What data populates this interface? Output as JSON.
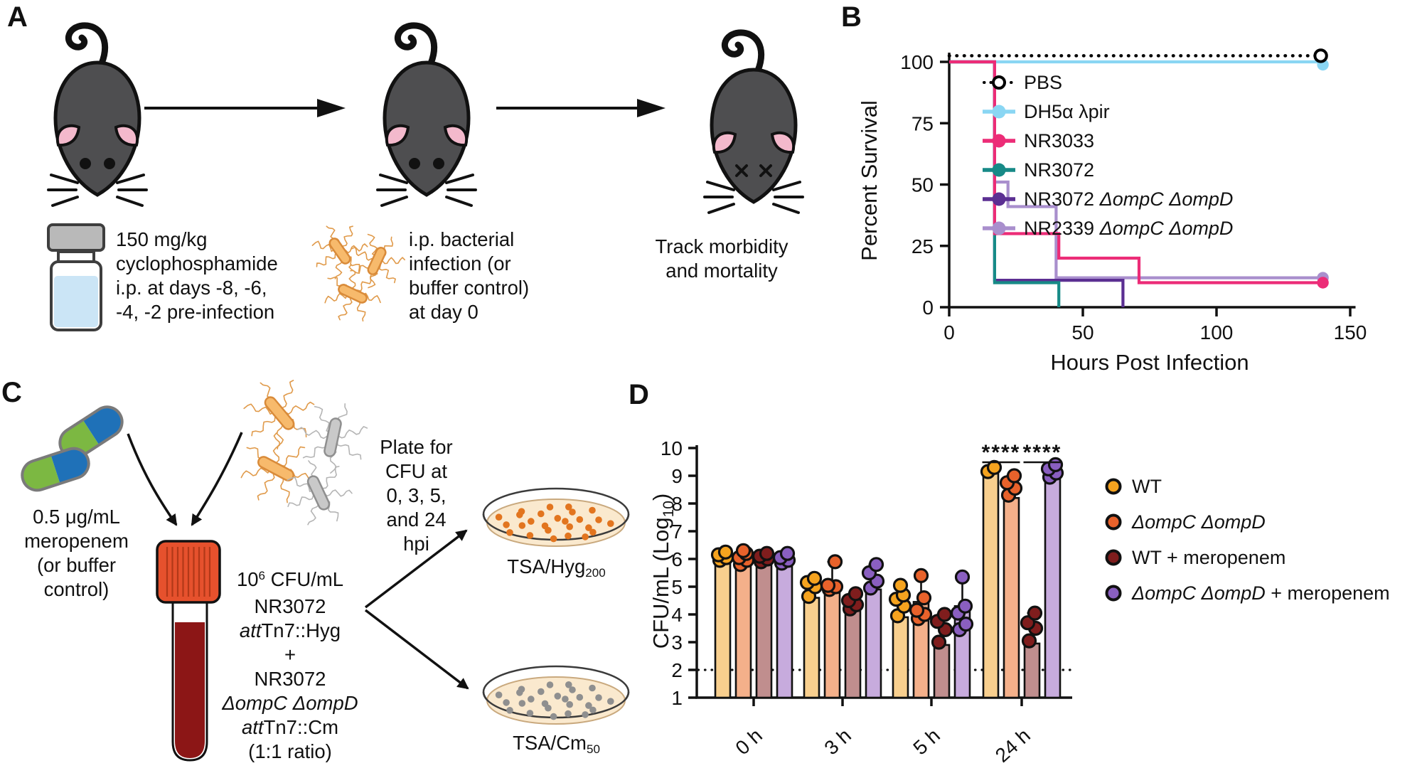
{
  "figure": {
    "panel_labels": {
      "a": "A",
      "b": "B",
      "c": "C",
      "d": "D"
    }
  },
  "panel_a": {
    "cyclophosphamide_text": [
      "150 mg/kg",
      "cyclophosphamide",
      "i.p. at days -8, -6,",
      "-4, -2 pre-infection"
    ],
    "infection_text": [
      "i.p. bacterial",
      "infection (or",
      "buffer control)",
      "at day 0"
    ],
    "track_text": [
      "Track morbidity",
      "and mortality"
    ]
  },
  "panel_c": {
    "meropenem_text": [
      "0.5 μg/mL",
      "meropenem",
      "(or buffer",
      "control)"
    ],
    "plate_for_text": [
      "Plate for",
      "CFU at",
      "0, 3, 5,",
      "and 24",
      "hpi"
    ],
    "inoculum_text": [
      [
        {
          "t": "10"
        },
        {
          "t": "6",
          "sup": true
        },
        {
          "t": " CFU/mL"
        }
      ],
      [
        {
          "t": "NR3072"
        }
      ],
      [
        {
          "t": "att",
          "i": true
        },
        {
          "t": "Tn7::Hyg"
        }
      ],
      [
        {
          "t": "+"
        }
      ],
      [
        {
          "t": "NR3072"
        }
      ],
      [
        {
          "t": "ΔompC ΔompD",
          "i": true
        }
      ],
      [
        {
          "t": "att",
          "i": true
        },
        {
          "t": "Tn7::Cm"
        }
      ],
      [
        {
          "t": "(1:1 ratio)"
        }
      ]
    ],
    "plate_top_label": [
      [
        {
          "t": "TSA/Hyg"
        },
        {
          "t": "200",
          "sub": true
        }
      ]
    ],
    "plate_bottom_label": [
      [
        {
          "t": "TSA/Cm"
        },
        {
          "t": "50",
          "sub": true
        }
      ]
    ]
  },
  "chart_data": [
    {
      "type": "line",
      "subtype": "kaplan-meier-survival",
      "title": "",
      "xlabel": "Hours Post Infection",
      "ylabel": "Percent Survival",
      "xlim": [
        0,
        150
      ],
      "xticks": [
        0,
        50,
        100,
        150
      ],
      "ylim": [
        0,
        100
      ],
      "yticks": [
        0,
        25,
        50,
        75,
        100
      ],
      "grid": false,
      "legend_position": "inside-top-right",
      "series": [
        {
          "name": "PBS",
          "name_rich": [
            {
              "t": "PBS"
            }
          ],
          "color": "#000000",
          "line": "dotted",
          "marker": "open",
          "offset_y": 2.5,
          "z": 6,
          "end_marker": true,
          "steps": [
            [
              0,
              100
            ],
            [
              139,
              100
            ]
          ]
        },
        {
          "name": "DH5α λpir",
          "name_rich": [
            {
              "t": "DH5α λpir"
            }
          ],
          "color": "#8AD6F3",
          "line": "solid",
          "marker": "filled",
          "z": 1,
          "end_marker": true,
          "steps": [
            [
              0,
              100
            ],
            [
              139,
              100
            ]
          ]
        },
        {
          "name": "NR3033",
          "name_rich": [
            {
              "t": "NR3033"
            }
          ],
          "color": "#EC2C77",
          "line": "solid",
          "marker": "filled",
          "z": 5,
          "end_marker": true,
          "steps": [
            [
              0,
              100
            ],
            [
              17,
              100
            ],
            [
              17,
              30
            ],
            [
              41,
              30
            ],
            [
              41,
              20
            ],
            [
              71,
              20
            ],
            [
              71,
              10
            ],
            [
              139,
              10
            ]
          ]
        },
        {
          "name": "NR3072",
          "name_rich": [
            {
              "t": "NR3072"
            }
          ],
          "color": "#178A87",
          "line": "solid",
          "marker": "filled",
          "z": 4,
          "end_marker": false,
          "steps": [
            [
              0,
              100
            ],
            [
              17,
              100
            ],
            [
              17,
              10
            ],
            [
              41,
              10
            ],
            [
              41,
              0
            ]
          ]
        },
        {
          "name": "NR3072 ΔompC ΔompD",
          "name_rich": [
            {
              "t": "NR3072 "
            },
            {
              "t": "ΔompC ΔompD",
              "i": true
            }
          ],
          "color": "#5B2F92",
          "line": "solid",
          "marker": "filled",
          "z": 3,
          "end_marker": false,
          "steps": [
            [
              0,
              100
            ],
            [
              17,
              100
            ],
            [
              17,
              11
            ],
            [
              65,
              11
            ],
            [
              65,
              0
            ]
          ]
        },
        {
          "name": "NR2339 ΔompC ΔompD",
          "name_rich": [
            {
              "t": "NR2339 "
            },
            {
              "t": "ΔompC ΔompD",
              "i": true
            }
          ],
          "color": "#A98FCD",
          "line": "solid",
          "marker": "filled",
          "z": 2,
          "end_marker": true,
          "steps": [
            [
              0,
              100
            ],
            [
              17,
              100
            ],
            [
              17,
              51
            ],
            [
              22,
              51
            ],
            [
              22,
              41
            ],
            [
              40,
              41
            ],
            [
              40,
              12
            ],
            [
              139,
              12
            ]
          ]
        }
      ]
    },
    {
      "type": "bar",
      "subtype": "grouped-bar-with-dots",
      "title": "",
      "xlabel": "",
      "ylabel": "CFU/mL (Log10)",
      "ylabel_rich": [
        {
          "t": "CFU/mL (Log"
        },
        {
          "t": "10",
          "sub": true
        },
        {
          "t": ")"
        }
      ],
      "categories": [
        "0 h",
        "3 h",
        "5 h",
        "24 h"
      ],
      "ylim": [
        1,
        10
      ],
      "yticks": [
        1,
        2,
        3,
        4,
        5,
        6,
        7,
        8,
        9,
        10
      ],
      "detection_limit": 2,
      "series": [
        {
          "name": "WT",
          "name_rich": [
            {
              "t": "WT"
            }
          ],
          "bar_color": "#F8CF8E",
          "dot_color": "#F5A31F",
          "values": [
            6.0,
            4.6,
            3.9,
            9.2
          ],
          "dots": [
            [
              5.95,
              6.05,
              6.15,
              6.25
            ],
            [
              4.65,
              5.0,
              5.15,
              5.3
            ],
            [
              3.95,
              4.3,
              4.55,
              4.7,
              5.05
            ],
            [
              9.15,
              9.3
            ]
          ]
        },
        {
          "name": "ΔompC ΔompD",
          "name_rich": [
            {
              "t": "ΔompC ΔompD",
              "i": true
            }
          ],
          "bar_color": "#F4B08A",
          "dot_color": "#E8622B",
          "values": [
            5.95,
            4.85,
            4.45,
            8.2
          ],
          "dots": [
            [
              5.8,
              5.95,
              6.05,
              6.2,
              6.3
            ],
            [
              4.9,
              5.0,
              5.05,
              5.9
            ],
            [
              3.85,
              4.0,
              4.15,
              4.6,
              5.4
            ],
            [
              8.3,
              8.55,
              8.75,
              9.0
            ]
          ]
        },
        {
          "name": "WT + meropenem",
          "name_rich": [
            {
              "t": "WT + meropenem"
            }
          ],
          "bar_color": "#C08E8E",
          "dot_color": "#7F1D1D",
          "values": [
            6.0,
            4.25,
            2.9,
            2.95
          ],
          "dots": [
            [
              5.9,
              6.0,
              6.1,
              6.2
            ],
            [
              4.2,
              4.35,
              4.5,
              4.75
            ],
            [
              3.0,
              3.45,
              3.75,
              4.0
            ],
            [
              3.05,
              3.5,
              3.7,
              4.05
            ]
          ]
        },
        {
          "name": "ΔompC ΔompD + meropenem",
          "name_rich": [
            {
              "t": "ΔompC ΔompD",
              "i": true
            },
            {
              "t": " + meropenem"
            }
          ],
          "bar_color": "#C7ABDD",
          "dot_color": "#8A5FC0",
          "values": [
            5.95,
            4.9,
            4.3,
            8.95
          ],
          "dots": [
            [
              5.85,
              5.95,
              6.05,
              6.2
            ],
            [
              4.95,
              5.2,
              5.5,
              5.8
            ],
            [
              3.45,
              3.65,
              4.05,
              4.3,
              5.35
            ],
            [
              8.95,
              9.1,
              9.25,
              9.4
            ]
          ]
        }
      ],
      "significance": [
        {
          "label": "****",
          "group": 3,
          "bars": [
            0,
            1
          ]
        },
        {
          "label": "****",
          "group": 3,
          "bars": [
            2,
            3
          ]
        }
      ]
    }
  ]
}
